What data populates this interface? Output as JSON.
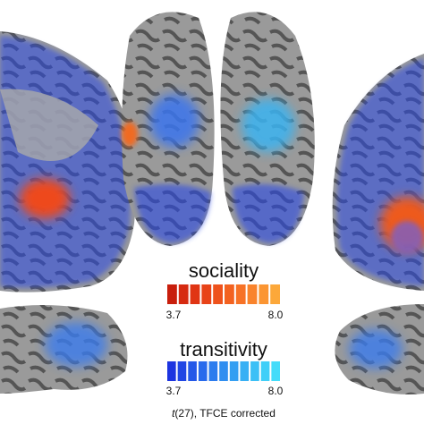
{
  "legend": {
    "sociality": {
      "title": "sociality",
      "min_label": "3.7",
      "max_label": "8.0",
      "colors": [
        "#c81e0c",
        "#d62a10",
        "#e03514",
        "#e84318",
        "#ee521c",
        "#f36220",
        "#f77226",
        "#f9832c",
        "#fb9532",
        "#fca83a"
      ]
    },
    "transitivity": {
      "title": "transitivity",
      "min_label": "3.7",
      "max_label": "8.0",
      "colors": [
        "#1c34e0",
        "#2046e4",
        "#2458e8",
        "#286aec",
        "#2c7cee",
        "#308ef0",
        "#349ff2",
        "#38b0f4",
        "#3cc0f6",
        "#40cff8",
        "#44dcfa"
      ]
    }
  },
  "caption": {
    "stat": "t",
    "text": "(27), TFCE corrected"
  }
}
